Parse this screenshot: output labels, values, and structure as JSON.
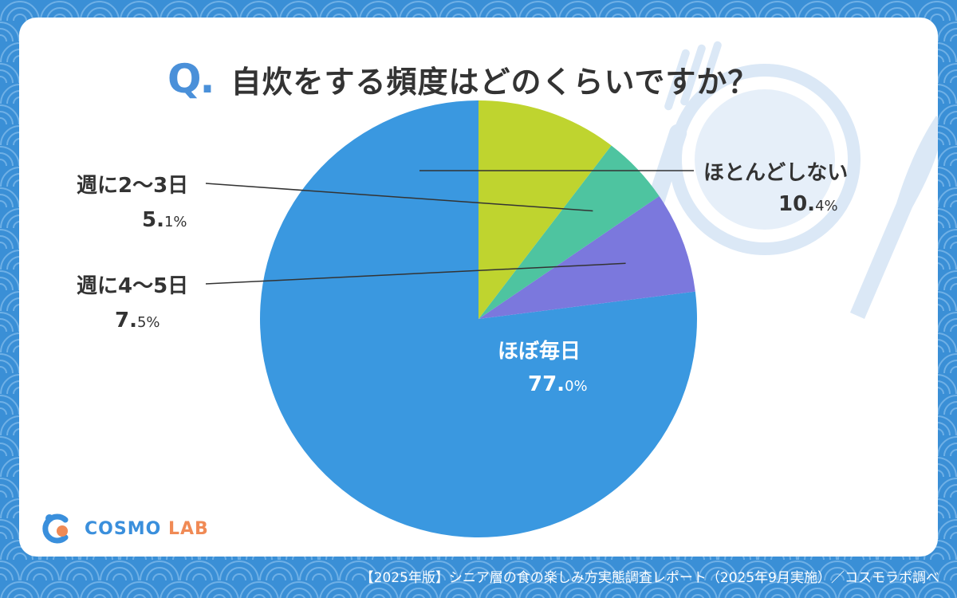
{
  "title": {
    "q_mark": "Q.",
    "question": "自炊をする頻度はどのくらいですか？"
  },
  "chart_data": {
    "type": "pie",
    "slices": [
      {
        "label": "ほぼ毎日",
        "value": 77.0,
        "value_main": "77.",
        "value_dec": "0%",
        "color": "#3a98e0"
      },
      {
        "label": "週に4〜5日",
        "value": 7.5,
        "value_main": "7.",
        "value_dec": "5%",
        "color": "#7b78dd"
      },
      {
        "label": "週に2〜3日",
        "value": 5.1,
        "value_main": "5.",
        "value_dec": "1%",
        "color": "#4ec4a0"
      },
      {
        "label": "ほとんどしない",
        "value": 10.4,
        "value_main": "10.",
        "value_dec": "4%",
        "color": "#bfd42f"
      }
    ],
    "direction": "counterclockwise"
  },
  "colors": {
    "background": "#3a8fd6",
    "accent": "#4a90d9",
    "text": "#333333"
  },
  "logo": {
    "brand": "COSMO",
    "suffix": "LAB"
  },
  "footer": "【2025年版】シニア層の食の楽しみ方実態調査レポート（2025年9月実施）／コスモラボ調べ"
}
